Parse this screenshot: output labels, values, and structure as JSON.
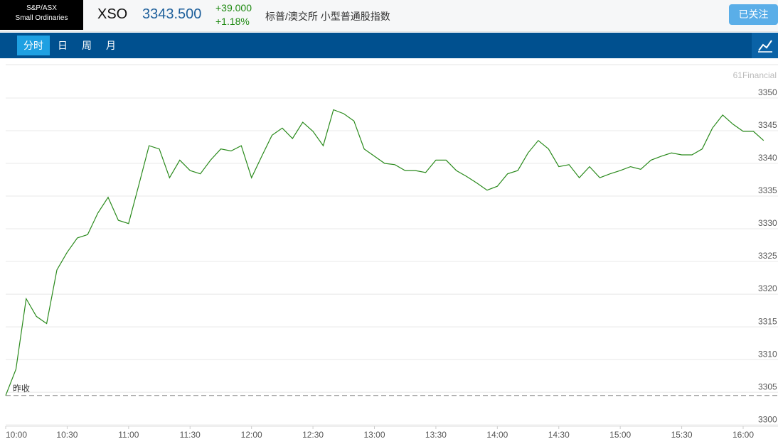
{
  "header": {
    "logo": [
      "S&P/ASX",
      "Small Ordinaries"
    ],
    "symbol": "XSO",
    "price": "3343.500",
    "change": "+39.000",
    "change_pct": "+1.18%",
    "name": "标普/澳交所 小型普通股指数",
    "follow_button": "已关注"
  },
  "tabs": [
    "分时",
    "日",
    "周",
    "月"
  ],
  "chart_data": {
    "type": "line",
    "watermark": "61Financial",
    "x": [
      "10:00",
      "10:05",
      "10:10",
      "10:15",
      "10:20",
      "10:25",
      "10:30",
      "10:35",
      "10:40",
      "10:45",
      "10:50",
      "10:55",
      "11:00",
      "11:05",
      "11:10",
      "11:15",
      "11:20",
      "11:25",
      "11:30",
      "11:35",
      "11:40",
      "11:45",
      "11:50",
      "11:55",
      "12:00",
      "12:05",
      "12:10",
      "12:15",
      "12:20",
      "12:25",
      "12:30",
      "12:35",
      "12:40",
      "12:45",
      "12:50",
      "12:55",
      "13:00",
      "13:05",
      "13:10",
      "13:15",
      "13:20",
      "13:25",
      "13:30",
      "13:35",
      "13:40",
      "13:45",
      "13:50",
      "13:55",
      "14:00",
      "14:05",
      "14:10",
      "14:15",
      "14:20",
      "14:25",
      "14:30",
      "14:35",
      "14:40",
      "14:45",
      "14:50",
      "14:55",
      "15:00",
      "15:05",
      "15:10",
      "15:15",
      "15:20",
      "15:25",
      "15:30",
      "15:35",
      "15:40",
      "15:45",
      "15:50",
      "15:55",
      "16:00",
      "16:05",
      "16:10"
    ],
    "series": [
      {
        "color": "#2a8a1c",
        "values": [
          3304.5,
          3308.5,
          3319.3,
          3316.6,
          3315.5,
          3323.7,
          3326.4,
          3328.6,
          3329.1,
          3332.4,
          3334.8,
          3331.3,
          3330.8,
          3336.7,
          3342.7,
          3342.2,
          3337.8,
          3340.5,
          3338.9,
          3338.4,
          3340.5,
          3342.2,
          3341.9,
          3342.7,
          3337.8,
          3341.1,
          3344.3,
          3345.4,
          3343.8,
          3346.3,
          3344.9,
          3342.7,
          3348.2,
          3347.6,
          3346.5,
          3342.2,
          3341.1,
          3340.0,
          3339.8,
          3338.9,
          3338.9,
          3338.6,
          3340.5,
          3340.5,
          3338.9,
          3338.0,
          3337.0,
          3335.9,
          3336.5,
          3338.4,
          3338.9,
          3341.6,
          3343.5,
          3342.2,
          3339.5,
          3339.8,
          3337.8,
          3339.5,
          3337.8,
          3338.4,
          3338.9,
          3339.5,
          3339.1,
          3340.5,
          3341.1,
          3341.6,
          3341.3,
          3341.3,
          3342.2,
          3345.4,
          3347.4,
          3346.0,
          3344.9,
          3344.9,
          3343.5
        ]
      }
    ],
    "ylim": [
      3299.8,
      3355.1
    ],
    "yticks": [
      3300,
      3305,
      3310,
      3315,
      3320,
      3325,
      3330,
      3335,
      3340,
      3345,
      3350
    ],
    "xticks": [
      "10:00",
      "10:30",
      "11:00",
      "11:30",
      "12:00",
      "12:30",
      "13:00",
      "13:30",
      "14:00",
      "14:30",
      "15:00",
      "15:30",
      "16:00"
    ],
    "grid": true,
    "reference_line": {
      "label": "昨收",
      "value": 3304.5,
      "color": "#888888"
    }
  }
}
